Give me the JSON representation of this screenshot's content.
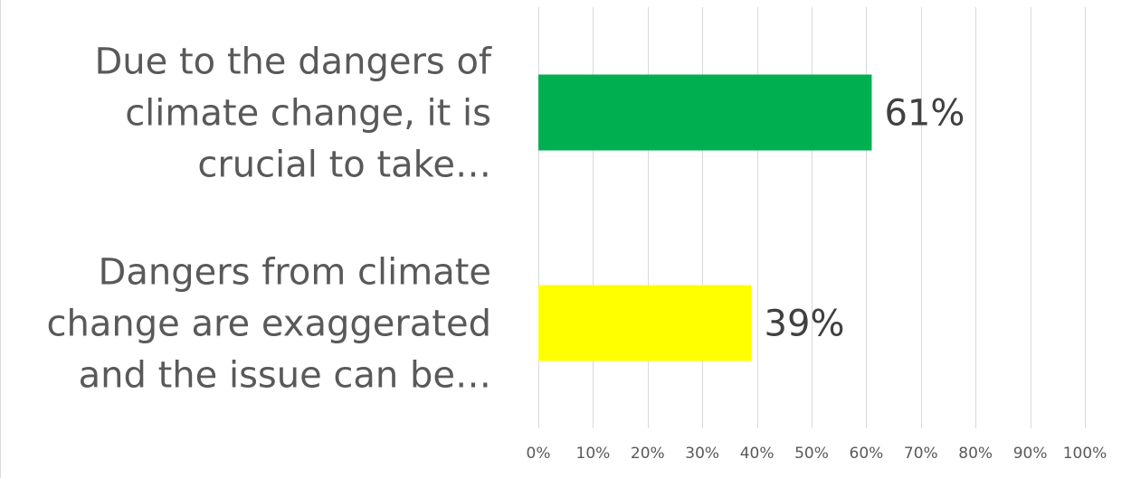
{
  "chart_data": {
    "type": "bar",
    "orientation": "horizontal",
    "categories": [
      [
        "Due to the dangers of",
        "climate change, it is",
        "crucial to take…"
      ],
      [
        "Dangers from climate",
        "change are exaggerated",
        "and the issue can be…"
      ]
    ],
    "values": [
      61,
      39
    ],
    "data_labels": [
      "61%",
      "39%"
    ],
    "bar_colors": [
      "#00b050",
      "#ffff00"
    ],
    "xlim": [
      0,
      100
    ],
    "x_ticks": [
      0,
      10,
      20,
      30,
      40,
      50,
      60,
      70,
      80,
      90,
      100
    ],
    "x_tick_labels": [
      "0%",
      "10%",
      "20%",
      "30%",
      "40%",
      "50%",
      "60%",
      "70%",
      "80%",
      "90%",
      "100%"
    ],
    "grid": true,
    "legend": "none",
    "title": "",
    "xlabel": "",
    "ylabel": ""
  }
}
